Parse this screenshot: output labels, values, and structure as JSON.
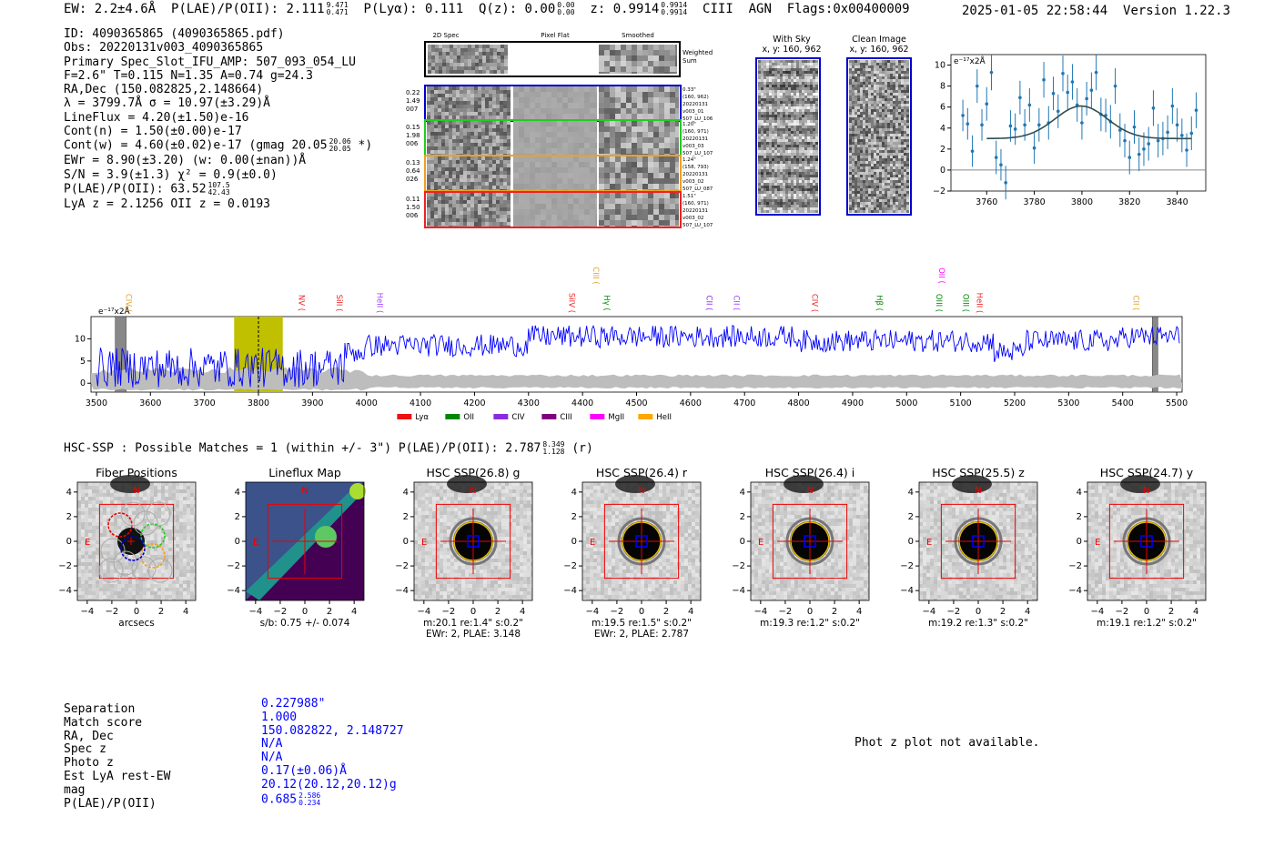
{
  "header": {
    "ew": "EW: 2.2±4.6Å",
    "plae_label": "P(LAE)/P(OII): 2.111",
    "plae_hi": "9.471",
    "plae_lo": "0.471",
    "plya": "P(Lyα): 0.111",
    "qz_label": "Q(z): 0.00",
    "qz_hi": "0.00",
    "qz_lo": "0.00",
    "z_label": "z: 0.9914",
    "z_hi": "0.9914",
    "z_lo": "0.9914",
    "tail": "CIII  AGN  Flags:0x00400009",
    "datetime": "2025-01-05 22:58:44",
    "version": "Version 1.22.3"
  },
  "info": {
    "id": "ID: 4090365865 (4090365865.pdf)",
    "obs": "Obs: 20220131v003_4090365865",
    "primary": "Primary Spec_Slot_IFU_AMP: 507_093_054_LU",
    "fit": "F=2.6\"  T=0.115  N=1.35  A=0.74  g=24.3",
    "radec": "RA,Dec (150.082825,2.148664)",
    "lambda": "λ = 3799.7Å  σ = 10.97(±3.29)Å",
    "lineflux": "LineFlux = 4.20(±1.50)e-16",
    "contn": "Cont(n) = 1.50(±0.00)e-17",
    "contw": "Cont(w) = 4.60(±0.02)e-17 (gmag 20.05",
    "contw_hi": "20.06",
    "contw_lo": "20.05",
    "contw_end": "*)",
    "ewr": "EWr = 8.90(±3.20) (w: 0.00(±nan))Å",
    "sn": "S/N = 3.9(±1.3)  χ² = 0.9(±0.0)",
    "plae": "P(LAE)/P(OII): 63.52",
    "plae_hi": "107.5",
    "plae_lo": "42.43",
    "lyaz": "LyA z = 2.1256  OII z = 0.0193"
  },
  "cutouts": {
    "col_headers": [
      "2D Spec",
      "Pixel Flat",
      "Smoothed"
    ],
    "weighted_sum": "Weighted Sum",
    "rows": [
      {
        "left": [
          "0.22",
          "1.49",
          "007"
        ],
        "right": [
          "0.33\"",
          "(160, 962)",
          "20220131",
          "v003_01",
          "507_LU_106"
        ],
        "color": "#0000cc"
      },
      {
        "left": [
          "0.15",
          "1.98",
          "006"
        ],
        "right": [
          "1.20\"",
          "(160, 971)",
          "20220131",
          "v003_03",
          "507_LU_107"
        ],
        "color": "#22cc22"
      },
      {
        "left": [
          "0.13",
          "0.64",
          "026"
        ],
        "right": [
          "1.24\"",
          "(158, 793)",
          "20220131",
          "v003_02",
          "507_LU_087"
        ],
        "color": "#f0a020"
      },
      {
        "left": [
          "0.11",
          "1.50",
          "006"
        ],
        "right": [
          "1.51\"",
          "(160, 971)",
          "20220131",
          "v003_02",
          "507_LU_107"
        ],
        "color": "#ee2222"
      }
    ],
    "with_sky_title": "With Sky",
    "with_sky_coords": "x, y: 160, 962",
    "clean_title": "Clean Image",
    "clean_coords": "x, y: 160, 962"
  },
  "chart_data": [
    {
      "type": "line",
      "title": "",
      "ylabel": "e⁻¹⁷x2Å",
      "xlabel": "",
      "xlim": [
        3745,
        3852
      ],
      "ylim": [
        -2,
        11
      ],
      "xticks": [
        3760,
        3780,
        3800,
        3820,
        3840
      ],
      "yticks": [
        -2,
        0,
        2,
        4,
        6,
        8,
        10
      ],
      "series": [
        {
          "name": "data",
          "style": "errorbar",
          "x": [
            3750,
            3752,
            3754,
            3756,
            3758,
            3760,
            3762,
            3764,
            3766,
            3768,
            3770,
            3772,
            3774,
            3776,
            3778,
            3780,
            3782,
            3784,
            3786,
            3788,
            3790,
            3792,
            3794,
            3796,
            3798,
            3800,
            3802,
            3804,
            3806,
            3808,
            3810,
            3812,
            3814,
            3816,
            3818,
            3820,
            3822,
            3824,
            3826,
            3828,
            3830,
            3832,
            3834,
            3836,
            3838,
            3840,
            3842,
            3844,
            3846,
            3848
          ],
          "y": [
            5.2,
            4.4,
            1.8,
            8.0,
            4.3,
            6.3,
            9.3,
            1.2,
            0.5,
            -1.2,
            4.2,
            3.9,
            6.9,
            4.3,
            6.2,
            2.1,
            4.3,
            8.6,
            4.5,
            7.3,
            5.6,
            9.2,
            7.4,
            8.4,
            6.2,
            4.5,
            6.8,
            7.6,
            9.3,
            5.3,
            5.2,
            4.6,
            8.0,
            3.8,
            2.8,
            1.2,
            4.1,
            1.5,
            2.0,
            2.5,
            5.9,
            2.8,
            3.0,
            3.6,
            6.1,
            4.3,
            3.3,
            1.9,
            3.5,
            5.7
          ],
          "err": [
            1.5,
            1.5,
            1.5,
            1.6,
            1.5,
            1.6,
            1.7,
            1.6,
            1.5,
            1.6,
            1.5,
            1.5,
            1.6,
            1.5,
            1.6,
            1.5,
            1.6,
            1.7,
            1.6,
            1.6,
            1.6,
            1.7,
            1.7,
            1.7,
            1.6,
            1.6,
            1.6,
            1.7,
            1.7,
            1.6,
            1.6,
            1.6,
            1.7,
            1.6,
            1.6,
            1.6,
            1.6,
            1.6,
            1.6,
            1.6,
            1.7,
            1.6,
            1.6,
            1.6,
            1.7,
            1.6,
            1.6,
            1.6,
            1.6,
            1.7
          ]
        },
        {
          "name": "gaussian fit",
          "style": "line",
          "continuum": 3.0,
          "amplitude": 3.1,
          "center": 3799.7,
          "sigma": 10.97
        }
      ]
    },
    {
      "type": "line",
      "title": "",
      "ylabel": "e⁻¹⁷x2Å",
      "xlim": [
        3490,
        5510
      ],
      "ylim": [
        -2,
        15
      ],
      "xticks": [
        3500,
        3600,
        3700,
        3800,
        3900,
        4000,
        4100,
        4200,
        4300,
        4400,
        4500,
        4600,
        4700,
        4800,
        4900,
        5000,
        5100,
        5200,
        5300,
        5400,
        5500
      ],
      "yticks": [
        0,
        5,
        10
      ],
      "highlight_window": [
        3755,
        3845
      ],
      "marker": 3800,
      "masked_regions": [
        [
          3535,
          3555
        ],
        [
          5455,
          5465
        ]
      ],
      "series": [
        {
          "name": "spectrum",
          "color": "#0000ff",
          "note": "noisy, ~2-8 below 4000Å, ~9-13 redward"
        },
        {
          "name": "error",
          "color": "#bbbbbb"
        }
      ],
      "line_labels": [
        {
          "label": "CIV",
          "x": 3555,
          "color": "#e8a020"
        },
        {
          "label": "NV",
          "x": 3875,
          "color": "#ee2222"
        },
        {
          "label": "SiII",
          "x": 3945,
          "color": "#ee2222"
        },
        {
          "label": "HeII",
          "x": 4020,
          "color": "#a040ff"
        },
        {
          "label": "SiIV",
          "x": 4375,
          "color": "#ee2222"
        },
        {
          "label": "CIII",
          "x": 4420,
          "color": "#e8a020"
        },
        {
          "label": "Hγ",
          "x": 4440,
          "color": "#008800"
        },
        {
          "label": "CII",
          "x": 4630,
          "color": "#8a2be2"
        },
        {
          "label": "CII",
          "x": 4680,
          "color": "#a040ff"
        },
        {
          "label": "CIV",
          "x": 4825,
          "color": "#ee2222"
        },
        {
          "label": "Hβ",
          "x": 4945,
          "color": "#008800"
        },
        {
          "label": "OIII",
          "x": 5055,
          "color": "#008800"
        },
        {
          "label": "OII",
          "x": 5060,
          "color": "#ff00ff"
        },
        {
          "label": "OIII",
          "x": 5105,
          "color": "#008800"
        },
        {
          "label": "HeII",
          "x": 5130,
          "color": "#ee2222"
        },
        {
          "label": "CII",
          "x": 5420,
          "color": "#e8a020"
        }
      ],
      "legend": [
        {
          "label": "Lyα",
          "color": "#ee1111"
        },
        {
          "label": "OII",
          "color": "#008800"
        },
        {
          "label": "CIV",
          "color": "#8a2be2"
        },
        {
          "label": "CIII",
          "color": "#800080"
        },
        {
          "label": "MgII",
          "color": "#ff00ff"
        },
        {
          "label": "HeII",
          "color": "#ffa500"
        }
      ]
    }
  ],
  "hsc": {
    "title": "HSC-SSP : Possible Matches = 1 (within +/- 3\")  P(LAE)/P(OII): 2.787",
    "plae_hi": "8.349",
    "plae_lo": "1.128",
    "band_suffix": "(r)",
    "ticks": [
      "−4",
      "−2",
      "0",
      "2",
      "4"
    ],
    "panels": [
      {
        "title": "Fiber Positions",
        "cap1": "arcsecs",
        "cap2": "",
        "kind": "fiber"
      },
      {
        "title": "Lineflux Map",
        "cap1": "s/b: 0.75 +/- 0.074",
        "cap2": "",
        "kind": "lineflux"
      },
      {
        "title": "HSC SSP(26.8) g",
        "cap1": "m:20.1  re:1.4\"  s:0.2\"",
        "cap2": "EWr: 2, PLAE: 3.148",
        "kind": "hsc"
      },
      {
        "title": "HSC SSP(26.4) r",
        "cap1": "m:19.5  re:1.5\"  s:0.2\"",
        "cap2": "EWr: 2, PLAE: 2.787",
        "kind": "hsc"
      },
      {
        "title": "HSC SSP(26.4) i",
        "cap1": "m:19.3  re:1.2\"  s:0.2\"",
        "cap2": "",
        "kind": "hsc"
      },
      {
        "title": "HSC SSP(25.5) z",
        "cap1": "m:19.2  re:1.3\"  s:0.2\"",
        "cap2": "",
        "kind": "hsc"
      },
      {
        "title": "HSC SSP(24.7) y",
        "cap1": "m:19.1  re:1.2\"  s:0.2\"",
        "cap2": "",
        "kind": "hsc"
      }
    ],
    "n_label": "N",
    "e_label": "E"
  },
  "match": {
    "labels": [
      "Separation",
      "Match score",
      "RA, Dec",
      "Spec z",
      "Photo z",
      "Est LyA rest-EW",
      "mag",
      "P(LAE)/P(OII)"
    ],
    "values": [
      "0.227988\"",
      "1.000",
      "150.082822, 2.148727",
      "N/A",
      "N/A",
      "0.17(±0.06)Å",
      "20.12(20.12,20.12)g",
      "0.685"
    ],
    "plae_hi": "2.586",
    "plae_lo": "0.234",
    "photz_note": "Phot z plot not available."
  }
}
